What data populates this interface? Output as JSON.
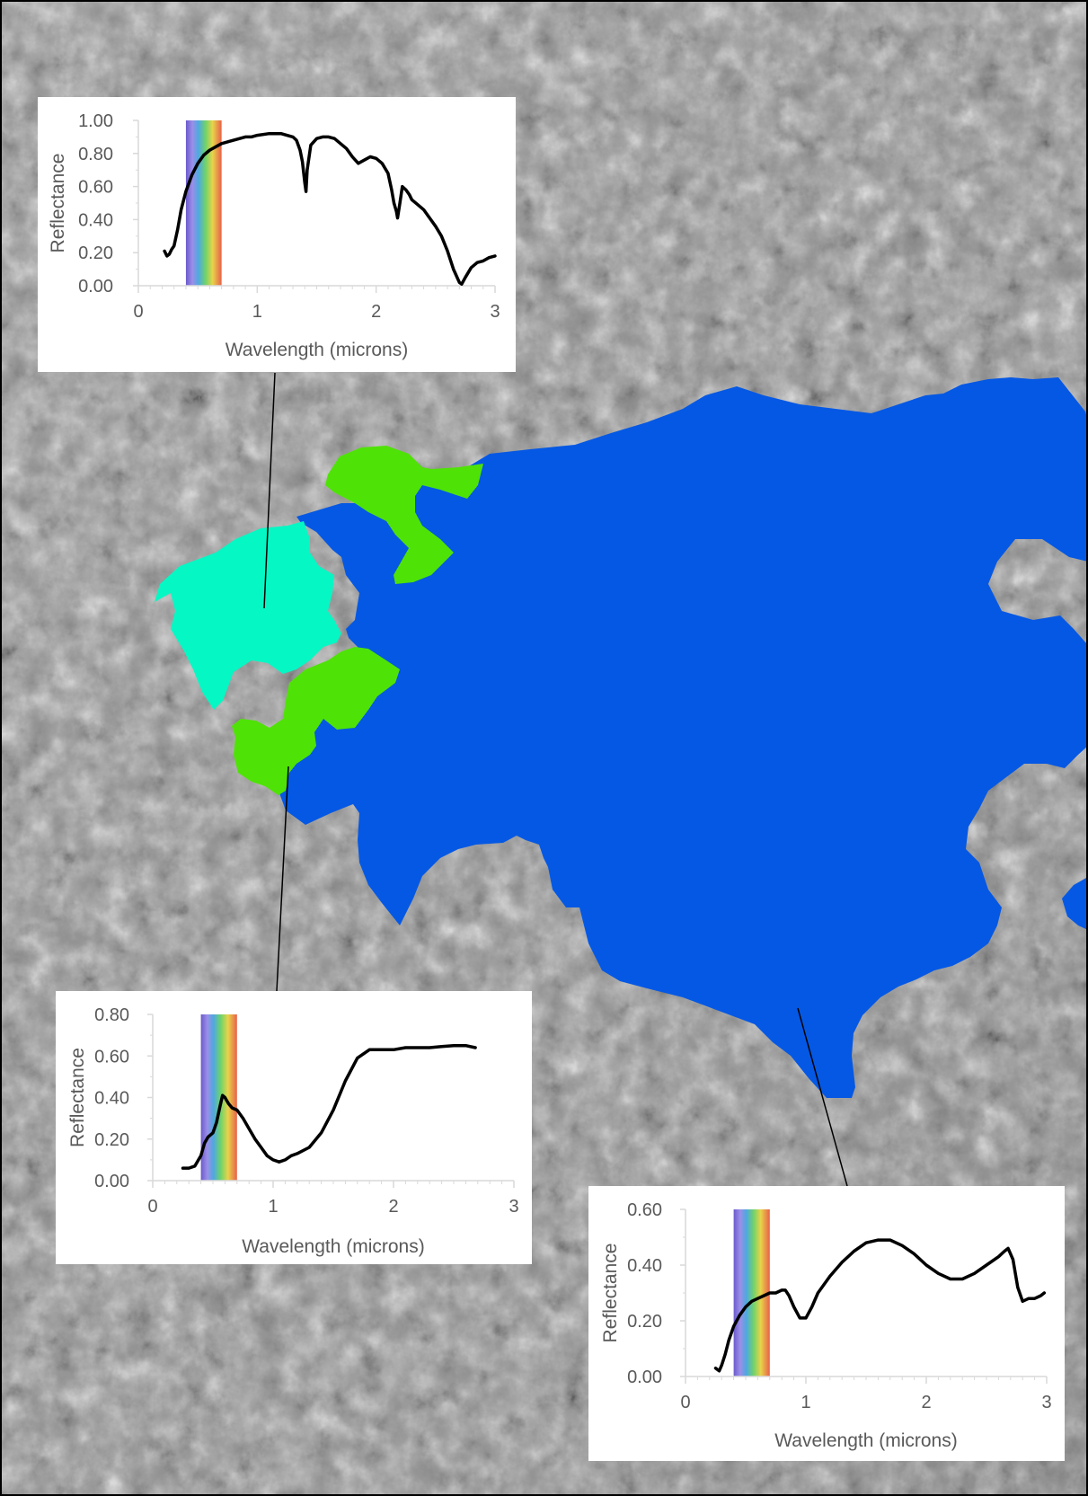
{
  "colors": {
    "water_region": "#0558e4",
    "green_region": "#4fe206",
    "cyan_region": "#05f7c4",
    "terrain_base": "#8f8f8f",
    "curve": "#000000",
    "axis": "#d9d9d9",
    "label": "#595959"
  },
  "chart_data": [
    {
      "type": "line",
      "title": "",
      "xlabel": "Wavelength (microns)",
      "ylabel": "Reflectance",
      "xlim": [
        0,
        3
      ],
      "ylim": [
        0,
        1.0
      ],
      "x_ticks": [
        "0",
        "1",
        "2",
        "3"
      ],
      "y_ticks": [
        "0.00",
        "0.20",
        "0.40",
        "0.60",
        "0.80",
        "1.00"
      ],
      "visible_band": [
        0.4,
        0.7
      ],
      "series": [
        {
          "x": [
            0.22,
            0.24,
            0.26,
            0.28,
            0.3,
            0.33,
            0.36,
            0.4,
            0.45,
            0.5,
            0.55,
            0.6,
            0.7,
            0.8,
            0.9,
            0.95,
            1.0,
            1.1,
            1.2,
            1.25,
            1.3,
            1.33,
            1.36,
            1.38,
            1.4,
            1.41,
            1.42,
            1.45,
            1.5,
            1.55,
            1.6,
            1.65,
            1.7,
            1.75,
            1.8,
            1.85,
            1.9,
            1.95,
            2.0,
            2.05,
            2.1,
            2.13,
            2.15,
            2.17,
            2.18,
            2.2,
            2.22,
            2.25,
            2.28,
            2.3,
            2.35,
            2.4,
            2.45,
            2.5,
            2.55,
            2.6,
            2.65,
            2.7,
            2.72,
            2.75,
            2.8,
            2.85,
            2.9,
            2.95,
            3.0
          ],
          "y": [
            0.21,
            0.18,
            0.19,
            0.22,
            0.24,
            0.34,
            0.46,
            0.57,
            0.67,
            0.74,
            0.79,
            0.82,
            0.86,
            0.88,
            0.9,
            0.9,
            0.91,
            0.92,
            0.92,
            0.91,
            0.9,
            0.88,
            0.82,
            0.75,
            0.62,
            0.57,
            0.7,
            0.85,
            0.89,
            0.9,
            0.9,
            0.89,
            0.86,
            0.83,
            0.78,
            0.74,
            0.76,
            0.78,
            0.77,
            0.74,
            0.68,
            0.58,
            0.5,
            0.45,
            0.41,
            0.5,
            0.6,
            0.58,
            0.55,
            0.52,
            0.49,
            0.46,
            0.41,
            0.36,
            0.3,
            0.21,
            0.1,
            0.02,
            0.01,
            0.05,
            0.11,
            0.14,
            0.15,
            0.17,
            0.18
          ]
        }
      ]
    },
    {
      "type": "line",
      "title": "",
      "xlabel": "Wavelength (microns)",
      "ylabel": "Reflectance",
      "xlim": [
        0,
        3
      ],
      "ylim": [
        0,
        0.8
      ],
      "x_ticks": [
        "0",
        "1",
        "2",
        "3"
      ],
      "y_ticks": [
        "0.00",
        "0.20",
        "0.40",
        "0.60",
        "0.80"
      ],
      "visible_band": [
        0.4,
        0.7
      ],
      "series": [
        {
          "x": [
            0.25,
            0.3,
            0.35,
            0.4,
            0.43,
            0.46,
            0.5,
            0.53,
            0.56,
            0.58,
            0.6,
            0.63,
            0.66,
            0.7,
            0.75,
            0.8,
            0.85,
            0.9,
            0.95,
            1.0,
            1.05,
            1.1,
            1.15,
            1.2,
            1.3,
            1.4,
            1.5,
            1.6,
            1.7,
            1.8,
            1.9,
            2.0,
            2.1,
            2.2,
            2.3,
            2.4,
            2.5,
            2.6,
            2.68
          ],
          "y": [
            0.06,
            0.06,
            0.07,
            0.12,
            0.18,
            0.21,
            0.23,
            0.28,
            0.36,
            0.41,
            0.4,
            0.37,
            0.35,
            0.34,
            0.3,
            0.25,
            0.2,
            0.16,
            0.12,
            0.1,
            0.09,
            0.1,
            0.12,
            0.13,
            0.16,
            0.23,
            0.34,
            0.48,
            0.59,
            0.63,
            0.63,
            0.63,
            0.64,
            0.64,
            0.64,
            0.645,
            0.65,
            0.65,
            0.64
          ]
        }
      ]
    },
    {
      "type": "line",
      "title": "",
      "xlabel": "Wavelength  (microns)",
      "ylabel": "Reflectance",
      "xlim": [
        0,
        3
      ],
      "ylim": [
        0,
        0.6
      ],
      "x_ticks": [
        "0",
        "1",
        "2",
        "3"
      ],
      "y_ticks": [
        "0.00",
        "0.20",
        "0.40",
        "0.60"
      ],
      "visible_band": [
        0.4,
        0.7
      ],
      "series": [
        {
          "x": [
            0.25,
            0.28,
            0.3,
            0.33,
            0.36,
            0.4,
            0.45,
            0.5,
            0.55,
            0.6,
            0.65,
            0.7,
            0.75,
            0.8,
            0.83,
            0.86,
            0.9,
            0.95,
            1.0,
            1.05,
            1.1,
            1.2,
            1.3,
            1.4,
            1.5,
            1.6,
            1.7,
            1.8,
            1.9,
            2.0,
            2.1,
            2.2,
            2.3,
            2.4,
            2.5,
            2.6,
            2.65,
            2.68,
            2.72,
            2.76,
            2.8,
            2.85,
            2.9,
            2.95,
            2.98
          ],
          "y": [
            0.03,
            0.02,
            0.04,
            0.08,
            0.13,
            0.18,
            0.22,
            0.25,
            0.27,
            0.28,
            0.29,
            0.3,
            0.3,
            0.31,
            0.31,
            0.29,
            0.25,
            0.21,
            0.21,
            0.25,
            0.3,
            0.36,
            0.41,
            0.45,
            0.48,
            0.49,
            0.49,
            0.47,
            0.44,
            0.4,
            0.37,
            0.35,
            0.35,
            0.37,
            0.4,
            0.43,
            0.45,
            0.46,
            0.42,
            0.32,
            0.27,
            0.28,
            0.28,
            0.29,
            0.3
          ]
        }
      ]
    }
  ]
}
